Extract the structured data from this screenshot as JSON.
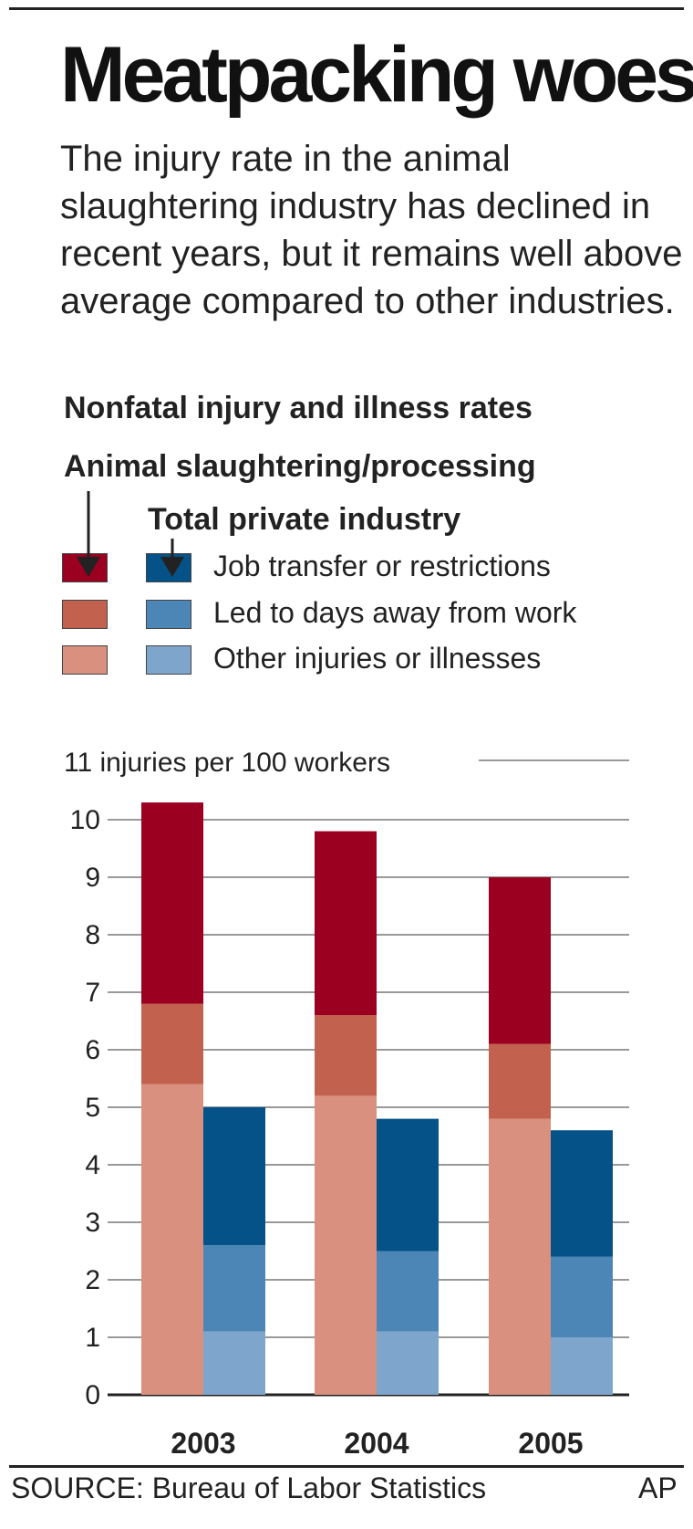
{
  "title": "Meatpacking woes",
  "subtitle": "The injury rate in the animal slaughtering industry has declined in recent years, but it remains well above average compared to other industries.",
  "source": "SOURCE: Bureau of Labor Statistics",
  "credit": "AP",
  "colors": {
    "meat_job": "#9b0021",
    "meat_days": "#c2624e",
    "meat_other": "#d9907e",
    "total_job": "#045287",
    "total_days": "#4c86b6",
    "total_other": "#7ea6cc",
    "grid": "#999999"
  },
  "chart_data": {
    "type": "bar",
    "title": "Nonfatal injury and illness rates",
    "groups": [
      "Animal slaughtering/processing",
      "Total private industry"
    ],
    "legend": [
      "Job transfer or restrictions",
      "Led to days away from work",
      "Other injuries or illnesses"
    ],
    "ylabel": "11 injuries per 100 workers",
    "categories": [
      "2003",
      "2004",
      "2005"
    ],
    "ylim": [
      0,
      11
    ],
    "yticks": [
      0,
      1,
      2,
      3,
      4,
      5,
      6,
      7,
      8,
      9,
      10
    ],
    "grid": true,
    "series": [
      {
        "name": "Other injuries or illnesses",
        "group": "Animal slaughtering/processing",
        "values": [
          5.4,
          5.2,
          4.8
        ]
      },
      {
        "name": "Led to days away from work",
        "group": "Animal slaughtering/processing",
        "values": [
          1.4,
          1.4,
          1.3
        ]
      },
      {
        "name": "Job transfer or restrictions",
        "group": "Animal slaughtering/processing",
        "values": [
          3.5,
          3.2,
          2.9
        ]
      },
      {
        "name": "Other injuries or illnesses",
        "group": "Total private industry",
        "values": [
          1.1,
          1.1,
          1.0
        ]
      },
      {
        "name": "Led to days away from work",
        "group": "Total private industry",
        "values": [
          1.5,
          1.4,
          1.4
        ]
      },
      {
        "name": "Job transfer or restrictions",
        "group": "Total private industry",
        "values": [
          2.4,
          2.3,
          2.2
        ]
      }
    ]
  }
}
